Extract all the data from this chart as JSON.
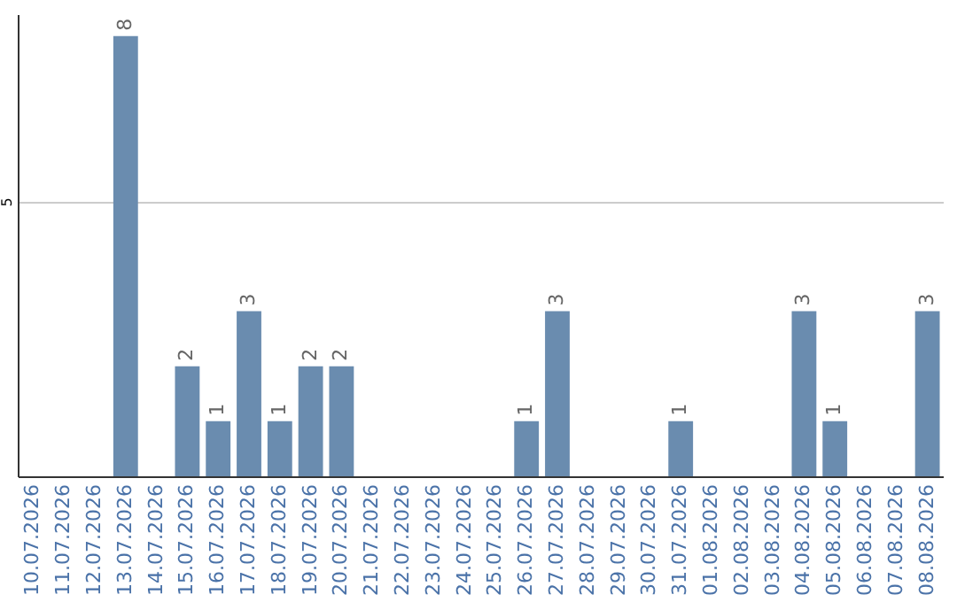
{
  "chart_data": {
    "type": "bar",
    "categories": [
      "10.07.2026",
      "11.07.2026",
      "12.07.2026",
      "13.07.2026",
      "14.07.2026",
      "15.07.2026",
      "16.07.2026",
      "17.07.2026",
      "18.07.2026",
      "19.07.2026",
      "20.07.2026",
      "21.07.2026",
      "22.07.2026",
      "23.07.2026",
      "24.07.2026",
      "25.07.2026",
      "26.07.2026",
      "27.07.2026",
      "28.07.2026",
      "29.07.2026",
      "30.07.2026",
      "31.07.2026",
      "01.08.2026",
      "02.08.2026",
      "03.08.2026",
      "04.08.2026",
      "05.08.2026",
      "06.08.2026",
      "07.08.2026",
      "08.08.2026"
    ],
    "values": [
      0,
      0,
      0,
      8,
      0,
      2,
      1,
      3,
      1,
      2,
      2,
      0,
      0,
      0,
      0,
      0,
      1,
      3,
      0,
      0,
      0,
      1,
      0,
      0,
      0,
      3,
      1,
      0,
      0,
      3
    ],
    "value_labels": [
      null,
      null,
      null,
      "8",
      null,
      "2",
      "1",
      "3",
      "1",
      "2",
      "2",
      null,
      null,
      null,
      null,
      null,
      "1",
      "3",
      null,
      null,
      null,
      "1",
      null,
      null,
      null,
      "3",
      "1",
      null,
      null,
      "3"
    ],
    "color": "#6a8caf",
    "ylim": [
      0,
      8.4
    ],
    "yticks": [
      5
    ],
    "grid": "y"
  }
}
